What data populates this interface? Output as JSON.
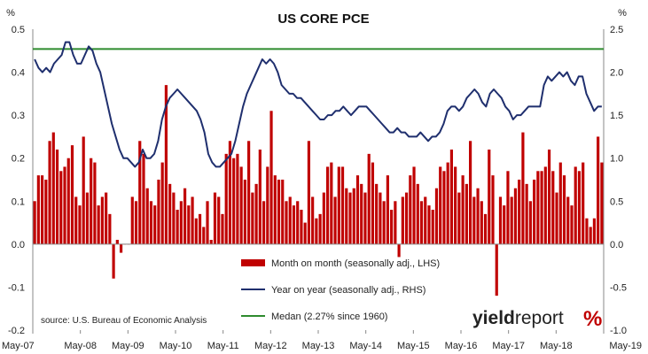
{
  "chart_data": {
    "type": "bar",
    "title": "US CORE PCE",
    "y_unit_left": "%",
    "y_unit_right": "%",
    "ylim_left": [
      -0.2,
      0.5
    ],
    "ylim_right": [
      -1.0,
      2.5
    ],
    "yticks_left": [
      "0.5",
      "0.4",
      "0.3",
      "0.2",
      "0.1",
      "0.0",
      "-0.1",
      "-0.2"
    ],
    "yticks_left_values": [
      0.5,
      0.4,
      0.3,
      0.2,
      0.1,
      0.0,
      -0.1,
      -0.2
    ],
    "yticks_right": [
      "2.5",
      "2.0",
      "1.5",
      "1.0",
      "0.5",
      "0.0",
      "-0.5",
      "-1.0"
    ],
    "yticks_right_values": [
      2.5,
      2.0,
      1.5,
      1.0,
      0.5,
      0.0,
      -0.5,
      -1.0
    ],
    "xticks": [
      "May-07",
      "May-08",
      "May-09",
      "May-10",
      "May-11",
      "May-12",
      "May-13",
      "May-14",
      "May-15",
      "May-16",
      "May-17",
      "May-18",
      "May-19"
    ],
    "x_start": "2007-05",
    "grid": false,
    "legend_position": "bottom-center",
    "series": [
      {
        "name": "Month on month (seasonally adj., LHS)",
        "type": "bar",
        "axis": "left",
        "color": "#c00000",
        "values": [
          0.1,
          0.16,
          0.16,
          0.15,
          0.24,
          0.26,
          0.22,
          0.17,
          0.18,
          0.2,
          0.23,
          0.11,
          0.09,
          0.25,
          0.12,
          0.2,
          0.19,
          0.09,
          0.11,
          0.12,
          0.07,
          -0.08,
          0.01,
          -0.02,
          0.0,
          0.0,
          0.11,
          0.1,
          0.24,
          0.21,
          0.13,
          0.1,
          0.09,
          0.15,
          0.19,
          0.37,
          0.14,
          0.12,
          0.08,
          0.1,
          0.13,
          0.09,
          0.11,
          0.06,
          0.07,
          0.04,
          0.1,
          0.01,
          0.12,
          0.11,
          0.07,
          0.21,
          0.24,
          0.2,
          0.21,
          0.18,
          0.15,
          0.24,
          0.12,
          0.14,
          0.22,
          0.1,
          0.18,
          0.31,
          0.16,
          0.15,
          0.15,
          0.1,
          0.11,
          0.09,
          0.1,
          0.08,
          0.05,
          0.24,
          0.11,
          0.06,
          0.07,
          0.12,
          0.18,
          0.19,
          0.11,
          0.18,
          0.18,
          0.13,
          0.12,
          0.13,
          0.16,
          0.14,
          0.12,
          0.21,
          0.19,
          0.14,
          0.12,
          0.1,
          0.16,
          0.08,
          0.1,
          -0.03,
          0.11,
          0.12,
          0.16,
          0.18,
          0.14,
          0.1,
          0.11,
          0.09,
          0.08,
          0.13,
          0.18,
          0.17,
          0.19,
          0.22,
          0.18,
          0.12,
          0.16,
          0.14,
          0.24,
          0.11,
          0.13,
          0.1,
          0.07,
          0.22,
          0.16,
          -0.12,
          0.11,
          0.09,
          0.17,
          0.11,
          0.13,
          0.15,
          0.26,
          0.14,
          0.1,
          0.15,
          0.17,
          0.17,
          0.18,
          0.22,
          0.17,
          0.12,
          0.19,
          0.16,
          0.11,
          0.09,
          0.18,
          0.17,
          0.19,
          0.06,
          0.04,
          0.06,
          0.25,
          0.19
        ]
      },
      {
        "name": "Year on year (seasonally adj., RHS)",
        "type": "line",
        "axis": "right",
        "color": "#1f2f6e",
        "values": [
          2.15,
          2.05,
          2.0,
          2.05,
          2.0,
          2.1,
          2.15,
          2.2,
          2.35,
          2.35,
          2.2,
          2.1,
          2.1,
          2.2,
          2.3,
          2.25,
          2.1,
          2.0,
          1.8,
          1.6,
          1.4,
          1.25,
          1.1,
          1.0,
          1.0,
          0.95,
          0.9,
          0.95,
          1.1,
          1.0,
          1.0,
          1.05,
          1.2,
          1.45,
          1.6,
          1.7,
          1.75,
          1.8,
          1.75,
          1.7,
          1.65,
          1.6,
          1.55,
          1.45,
          1.3,
          1.05,
          0.95,
          0.9,
          0.9,
          0.95,
          1.0,
          1.05,
          1.2,
          1.4,
          1.6,
          1.75,
          1.85,
          1.95,
          2.05,
          2.15,
          2.1,
          2.15,
          2.1,
          2.0,
          1.85,
          1.8,
          1.75,
          1.75,
          1.7,
          1.7,
          1.65,
          1.6,
          1.55,
          1.5,
          1.45,
          1.45,
          1.5,
          1.5,
          1.55,
          1.55,
          1.6,
          1.55,
          1.5,
          1.55,
          1.6,
          1.6,
          1.6,
          1.55,
          1.5,
          1.45,
          1.4,
          1.35,
          1.3,
          1.3,
          1.35,
          1.3,
          1.3,
          1.25,
          1.25,
          1.25,
          1.3,
          1.25,
          1.2,
          1.25,
          1.25,
          1.3,
          1.4,
          1.55,
          1.6,
          1.6,
          1.55,
          1.6,
          1.7,
          1.75,
          1.8,
          1.75,
          1.65,
          1.6,
          1.75,
          1.8,
          1.75,
          1.7,
          1.6,
          1.55,
          1.45,
          1.5,
          1.5,
          1.55,
          1.6,
          1.6,
          1.6,
          1.6,
          1.85,
          1.95,
          1.9,
          1.95,
          2.0,
          1.95,
          2.0,
          1.9,
          1.85,
          1.95,
          1.95,
          1.75,
          1.65,
          1.55,
          1.6,
          1.6
        ]
      },
      {
        "name": "Medan (2.27% since 1960)",
        "type": "line",
        "axis": "right",
        "color": "#2e8b2e",
        "constant": 2.27
      }
    ]
  },
  "source": "source: U.S. Bureau of Economic Analysis",
  "logo": {
    "part1": "yield",
    "part2": "report",
    "part3": "%"
  }
}
